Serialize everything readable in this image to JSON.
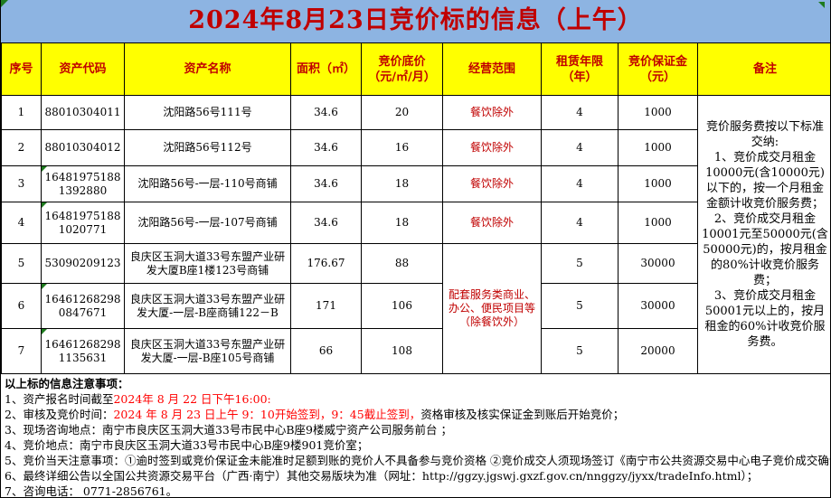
{
  "title": "2024年8月23日竞价标的信息（上午）",
  "colors": {
    "title_bg": "#8db4e2",
    "header_bg": "#ffff00",
    "title_text": "#c00000",
    "header_text": "#c00000",
    "scope_text": "#c00000",
    "highlight_red": "#ff0000",
    "grid": "#000000",
    "error_triangle_green": "#1e7b1e"
  },
  "table": {
    "headers": [
      {
        "label": "序号"
      },
      {
        "label": "资产代码"
      },
      {
        "label": "资产名称"
      },
      {
        "label": "面积（㎡）"
      },
      {
        "label": "竞价底价\n（元/㎡/月）"
      },
      {
        "label": "经营范围"
      },
      {
        "label": "租赁年限\n（年）"
      },
      {
        "label": "竞价保证金\n（元）"
      },
      {
        "label": "备注"
      }
    ],
    "rows": [
      {
        "no": "1",
        "code": "88010304011",
        "name": "沈阳路56号111号",
        "area": "34.6",
        "price": "20",
        "scope": "餐饮除外",
        "years": "4",
        "deposit": "1000",
        "error_triangle": false
      },
      {
        "no": "2",
        "code": "88010304012",
        "name": "沈阳路56号112号",
        "area": "34.6",
        "price": "16",
        "scope": "餐饮除外",
        "years": "4",
        "deposit": "1000",
        "error_triangle": false
      },
      {
        "no": "3",
        "code": "164819751881392880",
        "name": "沈阳路56号-一层-110号商铺",
        "area": "34.6",
        "price": "18",
        "scope": "餐饮除外",
        "years": "4",
        "deposit": "1000",
        "error_triangle": true
      },
      {
        "no": "4",
        "code": "164819751881020771",
        "name": "沈阳路56号-一层-107号商铺",
        "area": "34.6",
        "price": "18",
        "scope": "餐饮除外",
        "years": "4",
        "deposit": "1000",
        "error_triangle": true
      },
      {
        "no": "5",
        "code": "53090209123",
        "name": "良庆区玉洞大道33号东盟产业研发大厦B座1楼123号商铺",
        "area": "176.67",
        "price": "88",
        "years": "5",
        "deposit": "30000",
        "error_triangle": false
      },
      {
        "no": "6",
        "code": "164612682980847671",
        "name": "良庆区玉洞大道33号东盟产业研发大厦-一层-B座商铺122－B",
        "area": "171",
        "price": "106",
        "years": "5",
        "deposit": "30000",
        "error_triangle": true
      },
      {
        "no": "7",
        "code": "164612682981135631",
        "name": "良庆区玉洞大道33号东盟产业研发大厦-一层-B座105号商铺",
        "area": "66",
        "price": "108",
        "years": "5",
        "deposit": "20000",
        "error_triangle": true
      }
    ],
    "merged_scope": "配套服务类商业、\n办公、便民项目等\n（除餐饮外）",
    "remark": "竞价服务费按以下标准交纳:\n1、竞价成交月租金10000元(含10000元)以下的，按一个月租金金额计收竞价服务费；\n2、竞价成交月租金10001元至50000元(含50000元)的，按月租金的80%计收竞价服务费；\n3、竞价成交月租金50001元以上的，按月租金的60%计收竞价服务费。"
  },
  "notes": {
    "heading": "以上标的信息注意事项：",
    "lines": [
      {
        "segments": [
          {
            "text": "1、资产报名时间截至",
            "red": false
          },
          {
            "text": "2024年 8 月 22 日下午16:00:",
            "red": true
          }
        ]
      },
      {
        "segments": [
          {
            "text": "2、审核及竞价时间：",
            "red": false
          },
          {
            "text": "2024 年 8 月 23 日上午 9：10开始签到，9：45截止签到，",
            "red": true
          },
          {
            "text": "资格审核及核实保证金到账后开始竞价；",
            "red": false
          }
        ]
      },
      {
        "segments": [
          {
            "text": "3、现场咨询地点：南宁市良庆区玉洞大道33号市民中心B座9楼威宁资产公司服务前台 ；",
            "red": false
          }
        ]
      },
      {
        "segments": [
          {
            "text": "4、竞价地点：南宁市良庆区玉洞大道33号市民中心B座9楼901竞价室；",
            "red": false
          }
        ]
      },
      {
        "segments": [
          {
            "text": "5、竞价当天注意事项：①逾时签到或竞价保证金未能准时足额到账的竞价人不具备参与竞价资格 ②竞价成交人须现场签订《南宁市公共资源交易中心电子竞价成交确认单》",
            "red": false
          }
        ]
      },
      {
        "segments": [
          {
            "text": "6、最终详细公告以全国公共资源交易平台（广西·南宁）其他交易版块为准（网址：http://ggzy.jgswj.gxzf.gov.cn/nnggzy/jyxx/tradeInfo.html）；",
            "red": false
          }
        ]
      },
      {
        "segments": [
          {
            "text": "7、咨询电话：  0771-2856761。",
            "red": false
          }
        ]
      }
    ]
  }
}
